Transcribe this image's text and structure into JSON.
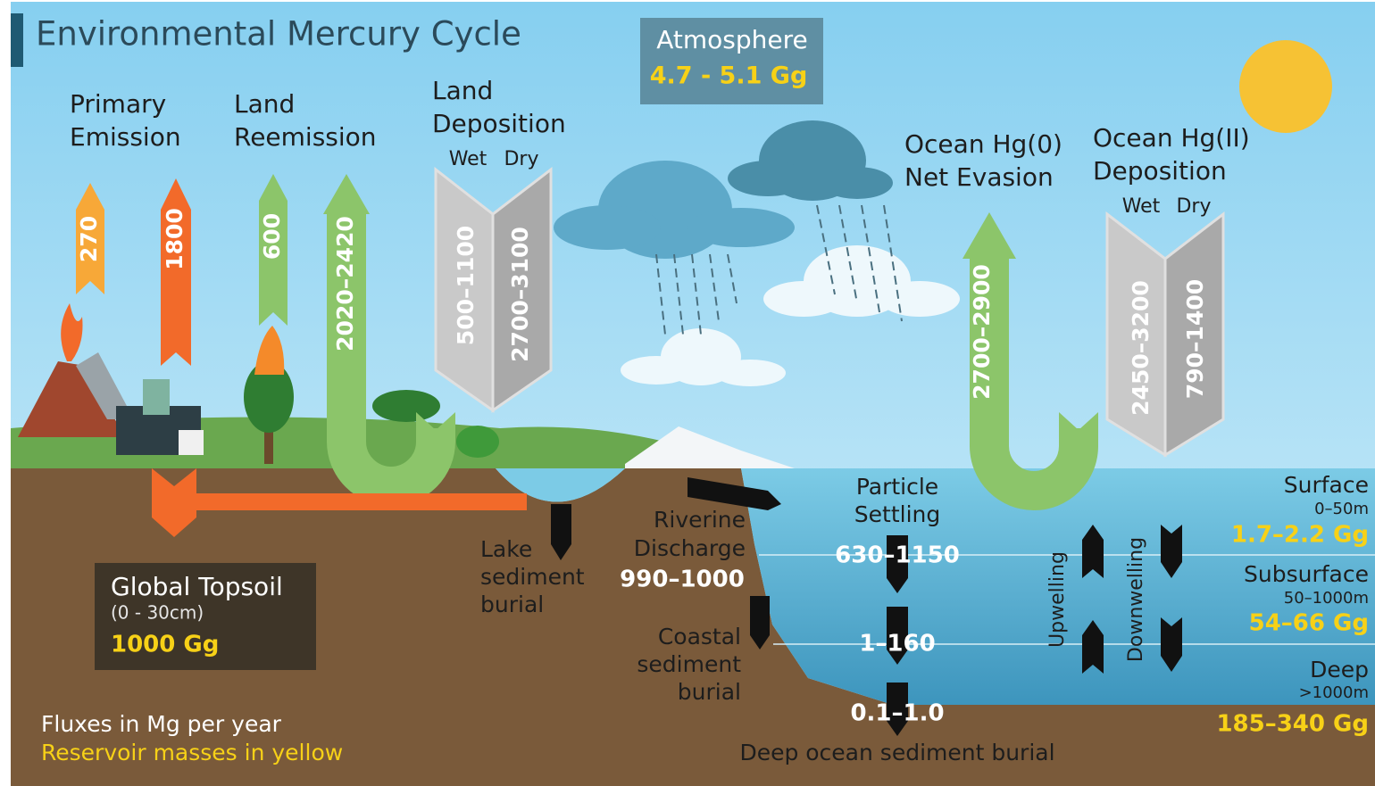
{
  "title": "Environmental Mercury Cycle",
  "atmosphere": {
    "label": "Atmosphere",
    "mass": "4.7 - 5.1 Gg"
  },
  "primary_emission": {
    "label": [
      "Primary",
      "Emission"
    ],
    "fluxes": [
      "270",
      "1800"
    ]
  },
  "land_reemission": {
    "label": [
      "Land",
      "Reemission"
    ],
    "fluxes": [
      "600",
      "2020–2420"
    ]
  },
  "land_deposition": {
    "label": [
      "Land",
      "Deposition"
    ],
    "wet": "Wet",
    "dry": "Dry",
    "fluxes": [
      "500–1100",
      "2700–3100"
    ]
  },
  "ocean_evasion": {
    "label": [
      "Ocean Hg(0)",
      "Net Evasion"
    ],
    "flux": "2700–2900"
  },
  "ocean_deposition": {
    "label": [
      "Ocean Hg(II)",
      "Deposition"
    ],
    "wet": "Wet",
    "dry": "Dry",
    "fluxes": [
      "2450–3200",
      "790–1400"
    ]
  },
  "topsoil": {
    "label": "Global Topsoil",
    "depth": "(0 - 30cm)",
    "mass": "1000 Gg"
  },
  "lake_burial": {
    "label": [
      "Lake",
      "sediment",
      "burial"
    ]
  },
  "riverine": {
    "label": [
      "Riverine",
      "Discharge"
    ],
    "flux": "990–1000"
  },
  "coastal_burial": {
    "label": [
      "Coastal",
      "sediment",
      "burial"
    ]
  },
  "particle_settling": {
    "label": [
      "Particle",
      "Settling"
    ],
    "fluxes": [
      "630–1150",
      "1–160",
      "0.1–1.0"
    ]
  },
  "deep_burial": "Deep ocean sediment burial",
  "upwelling": "Upwelling",
  "downwelling": "Downwelling",
  "ocean_layers": [
    {
      "name": "Surface",
      "depth": "0–50m",
      "mass": "1.7–2.2 Gg"
    },
    {
      "name": "Subsurface",
      "depth": "50–1000m",
      "mass": "54–66 Gg"
    },
    {
      "name": "Deep",
      "depth": ">1000m",
      "mass": "185–340 Gg"
    }
  ],
  "legend": [
    "Fluxes in Mg per year",
    "Reservoir masses in yellow"
  ]
}
